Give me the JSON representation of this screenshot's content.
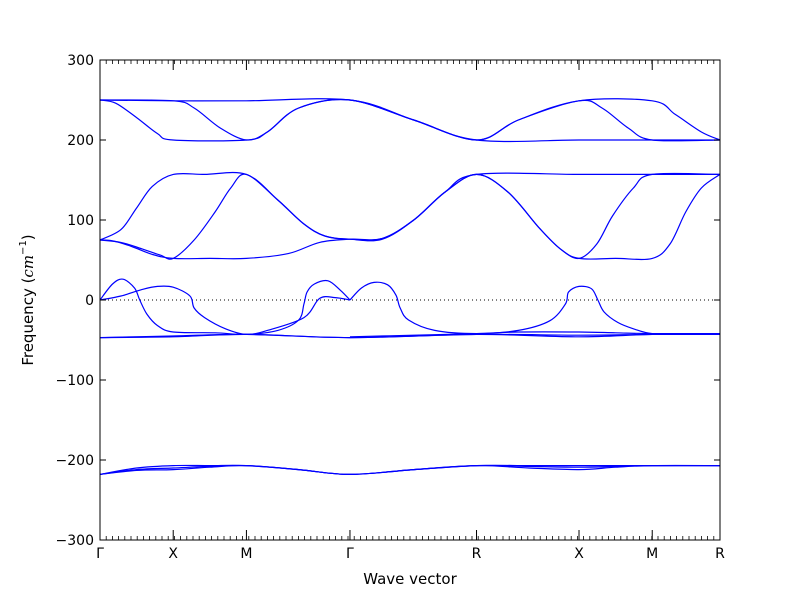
{
  "chart_data": {
    "type": "line",
    "title": "",
    "xlabel": "Wave vector",
    "ylabel_main": "Frequency (",
    "ylabel_unit": "cm",
    "ylabel_exp": "−1",
    "ylabel_close": ")",
    "ylim": [
      -300,
      300
    ],
    "xlim": [
      0,
      5.928
    ],
    "yticks": [
      {
        "value": 300,
        "label": "300"
      },
      {
        "value": 200,
        "label": "200"
      },
      {
        "value": 100,
        "label": "100"
      },
      {
        "value": 0,
        "label": "0"
      },
      {
        "value": -100,
        "label": "−100"
      },
      {
        "value": -200,
        "label": "−200"
      },
      {
        "value": -300,
        "label": "−300"
      }
    ],
    "xticks": [
      {
        "value": 0,
        "label": "Γ"
      },
      {
        "value": 0.7,
        "label": "X"
      },
      {
        "value": 1.4,
        "label": "M"
      },
      {
        "value": 2.39,
        "label": "Γ"
      },
      {
        "value": 3.6,
        "label": "R"
      },
      {
        "value": 4.58,
        "label": "X"
      },
      {
        "value": 5.28,
        "label": "M"
      },
      {
        "value": 5.928,
        "label": "R"
      }
    ],
    "zero_line": true,
    "line_color": "#0000ff",
    "series": [
      {
        "values": [
          [
            0,
            -218
          ],
          [
            0.35,
            -213
          ],
          [
            0.7,
            -212
          ],
          [
            1.05,
            -209
          ],
          [
            1.4,
            -207
          ],
          [
            1.9,
            -212
          ],
          [
            2.39,
            -218
          ],
          [
            3.0,
            -212
          ],
          [
            3.6,
            -207
          ],
          [
            4.1,
            -210
          ],
          [
            4.58,
            -212
          ],
          [
            4.93,
            -209
          ],
          [
            5.28,
            -207
          ],
          [
            5.928,
            -207
          ]
        ]
      },
      {
        "values": [
          [
            0,
            -218
          ],
          [
            0.35,
            -210
          ],
          [
            0.7,
            -207
          ],
          [
            1.05,
            -207
          ],
          [
            1.4,
            -207
          ],
          [
            1.9,
            -212
          ],
          [
            2.39,
            -218
          ],
          [
            3.0,
            -212
          ],
          [
            3.6,
            -207
          ],
          [
            4.1,
            -207
          ],
          [
            4.58,
            -207
          ],
          [
            4.93,
            -207
          ],
          [
            5.28,
            -207
          ],
          [
            5.928,
            -207
          ]
        ]
      },
      {
        "values": [
          [
            0,
            -218
          ],
          [
            0.35,
            -212
          ],
          [
            0.7,
            -210
          ],
          [
            1.05,
            -208
          ],
          [
            1.4,
            -207
          ],
          [
            1.9,
            -212
          ],
          [
            2.39,
            -218
          ],
          [
            3.0,
            -212
          ],
          [
            3.6,
            -207
          ],
          [
            4.1,
            -208
          ],
          [
            4.58,
            -209
          ],
          [
            4.93,
            -208
          ],
          [
            5.28,
            -207
          ],
          [
            5.928,
            -207
          ]
        ]
      },
      {
        "values": [
          [
            0,
            -47
          ],
          [
            0.7,
            -46
          ],
          [
            1.4,
            -43
          ],
          [
            2.39,
            -47
          ],
          [
            3.6,
            -43
          ],
          [
            4.58,
            -46
          ],
          [
            5.28,
            -43
          ],
          [
            5.928,
            -43
          ]
        ]
      },
      {
        "values": [
          [
            0,
            -47
          ],
          [
            0.7,
            -45
          ],
          [
            1.4,
            -43
          ],
          [
            2.39,
            -47
          ],
          [
            3.6,
            -43
          ],
          [
            4.58,
            -44
          ],
          [
            5.28,
            -43
          ],
          [
            5.928,
            -43
          ]
        ]
      },
      {
        "values": [
          [
            0,
            0
          ],
          [
            0.12,
            20
          ],
          [
            0.22,
            26
          ],
          [
            0.33,
            15
          ],
          [
            0.38,
            0
          ],
          [
            0.45,
            -18
          ],
          [
            0.55,
            -32
          ],
          [
            0.7,
            -40
          ],
          [
            1.1,
            -41
          ],
          [
            1.4,
            -43
          ],
          [
            1.7,
            -38
          ],
          [
            1.9,
            -25
          ],
          [
            1.95,
            -5
          ],
          [
            1.98,
            10
          ],
          [
            2.05,
            20
          ],
          [
            2.18,
            24
          ],
          [
            2.3,
            12
          ],
          [
            2.39,
            0
          ]
        ]
      },
      {
        "values": [
          [
            0,
            0
          ],
          [
            0.2,
            5
          ],
          [
            0.4,
            13
          ],
          [
            0.55,
            17
          ],
          [
            0.7,
            16
          ],
          [
            0.86,
            5
          ],
          [
            0.9,
            -10
          ],
          [
            1.0,
            -22
          ],
          [
            1.2,
            -36
          ],
          [
            1.4,
            -43
          ],
          [
            1.6,
            -38
          ],
          [
            1.95,
            -22
          ],
          [
            2.1,
            2
          ],
          [
            2.25,
            3
          ],
          [
            2.39,
            0
          ]
        ]
      },
      {
        "values": [
          [
            2.39,
            0
          ],
          [
            2.5,
            15
          ],
          [
            2.62,
            22
          ],
          [
            2.75,
            19
          ],
          [
            2.83,
            6
          ],
          [
            2.87,
            -10
          ],
          [
            2.95,
            -25
          ],
          [
            3.2,
            -38
          ],
          [
            3.6,
            -42
          ],
          [
            4.0,
            -38
          ],
          [
            4.3,
            -26
          ],
          [
            4.45,
            -5
          ],
          [
            4.48,
            10
          ],
          [
            4.58,
            17
          ],
          [
            4.7,
            14
          ],
          [
            4.76,
            0
          ],
          [
            4.82,
            -15
          ],
          [
            4.95,
            -28
          ],
          [
            5.1,
            -36
          ],
          [
            5.28,
            -42
          ],
          [
            5.6,
            -42
          ],
          [
            5.928,
            -42
          ]
        ]
      },
      {
        "values": [
          [
            2.39,
            -46
          ],
          [
            3.0,
            -44
          ],
          [
            3.6,
            -42
          ],
          [
            4.0,
            -40
          ],
          [
            4.58,
            -40
          ],
          [
            4.93,
            -41
          ],
          [
            5.28,
            -42
          ],
          [
            5.928,
            -42
          ]
        ]
      },
      {
        "values": [
          [
            0,
            75
          ],
          [
            0.12,
            74
          ],
          [
            0.3,
            67
          ],
          [
            0.5,
            57
          ],
          [
            0.7,
            52
          ],
          [
            1.05,
            52
          ],
          [
            1.4,
            52
          ],
          [
            1.8,
            58
          ],
          [
            2.1,
            72
          ],
          [
            2.39,
            76
          ],
          [
            2.7,
            77
          ],
          [
            3.0,
            100
          ],
          [
            3.3,
            135
          ],
          [
            3.6,
            157
          ],
          [
            3.9,
            135
          ],
          [
            4.2,
            90
          ],
          [
            4.4,
            64
          ],
          [
            4.58,
            52
          ],
          [
            4.93,
            52
          ],
          [
            5.28,
            52
          ],
          [
            5.45,
            70
          ],
          [
            5.6,
            110
          ],
          [
            5.75,
            140
          ],
          [
            5.928,
            157
          ]
        ]
      },
      {
        "values": [
          [
            0,
            75
          ],
          [
            0.2,
            72
          ],
          [
            0.4,
            64
          ],
          [
            0.58,
            56
          ],
          [
            0.7,
            52
          ],
          [
            0.9,
            75
          ],
          [
            1.1,
            110
          ],
          [
            1.25,
            140
          ],
          [
            1.4,
            157
          ],
          [
            1.7,
            125
          ],
          [
            1.95,
            95
          ],
          [
            2.15,
            80
          ],
          [
            2.39,
            76
          ],
          [
            2.7,
            76
          ],
          [
            3.0,
            100
          ],
          [
            3.3,
            135
          ],
          [
            3.6,
            157
          ],
          [
            3.9,
            135
          ],
          [
            4.2,
            90
          ],
          [
            4.4,
            64
          ],
          [
            4.58,
            52
          ],
          [
            4.75,
            70
          ],
          [
            4.9,
            105
          ],
          [
            5.1,
            140
          ],
          [
            5.28,
            157
          ],
          [
            5.928,
            157
          ]
        ]
      },
      {
        "values": [
          [
            0,
            75
          ],
          [
            0.2,
            88
          ],
          [
            0.35,
            115
          ],
          [
            0.5,
            142
          ],
          [
            0.7,
            157
          ],
          [
            1.0,
            157
          ],
          [
            1.4,
            157
          ],
          [
            1.7,
            125
          ],
          [
            1.95,
            95
          ],
          [
            2.15,
            80
          ],
          [
            2.39,
            76
          ],
          [
            2.7,
            77
          ],
          [
            3.0,
            100
          ],
          [
            3.3,
            135
          ],
          [
            3.6,
            157
          ],
          [
            4.58,
            157
          ],
          [
            5.28,
            157
          ],
          [
            5.928,
            157
          ]
        ]
      },
      {
        "values": [
          [
            0,
            250
          ],
          [
            0.7,
            249
          ],
          [
            1.4,
            249
          ],
          [
            2.39,
            250
          ],
          [
            3.0,
            225
          ],
          [
            3.6,
            200
          ],
          [
            4.0,
            225
          ],
          [
            4.58,
            249
          ],
          [
            5.28,
            249
          ],
          [
            5.5,
            232
          ],
          [
            5.75,
            210
          ],
          [
            5.928,
            200
          ]
        ]
      },
      {
        "values": [
          [
            0,
            250
          ],
          [
            0.15,
            246
          ],
          [
            0.35,
            228
          ],
          [
            0.55,
            208
          ],
          [
            0.7,
            200
          ],
          [
            1.4,
            200
          ],
          [
            1.6,
            210
          ],
          [
            1.9,
            240
          ],
          [
            2.39,
            250
          ],
          [
            3.0,
            225
          ],
          [
            3.6,
            200
          ],
          [
            4.0,
            225
          ],
          [
            4.58,
            249
          ],
          [
            4.8,
            240
          ],
          [
            5.05,
            215
          ],
          [
            5.28,
            200
          ],
          [
            5.928,
            200
          ]
        ]
      },
      {
        "values": [
          [
            0,
            250
          ],
          [
            0.7,
            249
          ],
          [
            0.9,
            240
          ],
          [
            1.15,
            215
          ],
          [
            1.4,
            200
          ],
          [
            1.6,
            210
          ],
          [
            1.9,
            240
          ],
          [
            2.39,
            250
          ],
          [
            3.0,
            225
          ],
          [
            3.6,
            200
          ],
          [
            4.58,
            200
          ],
          [
            5.28,
            200
          ],
          [
            5.928,
            200
          ]
        ]
      }
    ]
  }
}
